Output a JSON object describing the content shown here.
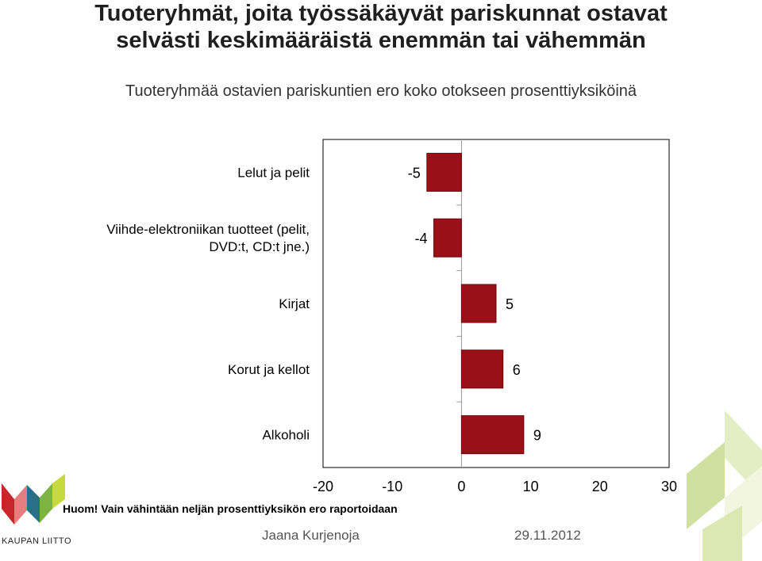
{
  "title": "Tuoteryhmät, joita työssäkäyvät pariskunnat ostavat selvästi keskimääräistä enemmän tai vähemmän",
  "subtitle": "Tuoteryhmää ostavien pariskuntien ero koko otokseen prosenttiyksiköinä",
  "note": "Huom! Vain vähintään neljän prosenttiyksikön ero raportoidaan",
  "footer": {
    "author": "Jaana Kurjenoja",
    "date": "29.11.2012"
  },
  "logo": {
    "text": "KAUPAN LIITTO"
  },
  "colors": {
    "bar": "#9b0f16",
    "bar_border": "#6b0a0f"
  },
  "chart_data": {
    "type": "bar",
    "orientation": "horizontal",
    "categories": [
      [
        "Lelut ja pelit"
      ],
      [
        "Viihde-elektroniikan tuotteet (pelit,",
        "DVD:t, CD:t jne.)"
      ],
      [
        "Kirjat"
      ],
      [
        "Korut ja kellot"
      ],
      [
        "Alkoholi"
      ]
    ],
    "values": [
      -5,
      -4,
      5,
      6,
      9
    ],
    "data_labels": [
      "-5",
      "-4",
      "5",
      "6",
      "9"
    ],
    "xlim": [
      -20,
      30
    ],
    "xticks": [
      "-20",
      "-10",
      "0",
      "10",
      "20",
      "30"
    ],
    "grid": false,
    "legend": "none"
  }
}
